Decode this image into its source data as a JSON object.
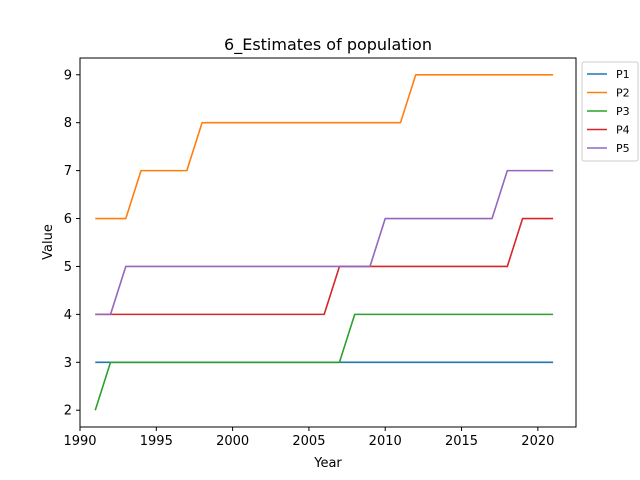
{
  "chart_data": {
    "type": "line",
    "title": "6_Estimates of population",
    "xlabel": "Year",
    "ylabel": "Value",
    "xlim": [
      1990.0,
      2022.5
    ],
    "ylim": [
      1.65,
      9.35
    ],
    "xticks": [
      1990,
      1995,
      2000,
      2005,
      2010,
      2015,
      2020
    ],
    "yticks": [
      2,
      3,
      4,
      5,
      6,
      7,
      8,
      9
    ],
    "legend_position": "outside-top-right",
    "grid": false,
    "x": [
      1991,
      1992,
      1993,
      1994,
      1995,
      1996,
      1997,
      1998,
      1999,
      2000,
      2001,
      2002,
      2003,
      2004,
      2005,
      2006,
      2007,
      2008,
      2009,
      2010,
      2011,
      2012,
      2013,
      2014,
      2015,
      2016,
      2017,
      2018,
      2019,
      2020,
      2021
    ],
    "series": [
      {
        "name": "P1",
        "color": "#1f77b4",
        "values": [
          3,
          3,
          3,
          3,
          3,
          3,
          3,
          3,
          3,
          3,
          3,
          3,
          3,
          3,
          3,
          3,
          3,
          3,
          3,
          3,
          3,
          3,
          3,
          3,
          3,
          3,
          3,
          3,
          3,
          3,
          3
        ]
      },
      {
        "name": "P2",
        "color": "#ff7f0e",
        "values": [
          6,
          6,
          6,
          7,
          7,
          7,
          7,
          8,
          8,
          8,
          8,
          8,
          8,
          8,
          8,
          8,
          8,
          8,
          8,
          8,
          8,
          9,
          9,
          9,
          9,
          9,
          9,
          9,
          9,
          9,
          9
        ]
      },
      {
        "name": "P3",
        "color": "#2ca02c",
        "values": [
          2,
          3,
          3,
          3,
          3,
          3,
          3,
          3,
          3,
          3,
          3,
          3,
          3,
          3,
          3,
          3,
          3,
          4,
          4,
          4,
          4,
          4,
          4,
          4,
          4,
          4,
          4,
          4,
          4,
          4,
          4
        ]
      },
      {
        "name": "P4",
        "color": "#d62728",
        "values": [
          4,
          4,
          4,
          4,
          4,
          4,
          4,
          4,
          4,
          4,
          4,
          4,
          4,
          4,
          4,
          4,
          5,
          5,
          5,
          5,
          5,
          5,
          5,
          5,
          5,
          5,
          5,
          5,
          6,
          6,
          6
        ]
      },
      {
        "name": "P5",
        "color": "#9467bd",
        "values": [
          4,
          4,
          5,
          5,
          5,
          5,
          5,
          5,
          5,
          5,
          5,
          5,
          5,
          5,
          5,
          5,
          5,
          5,
          5,
          6,
          6,
          6,
          6,
          6,
          6,
          6,
          6,
          7,
          7,
          7,
          7
        ]
      }
    ]
  }
}
